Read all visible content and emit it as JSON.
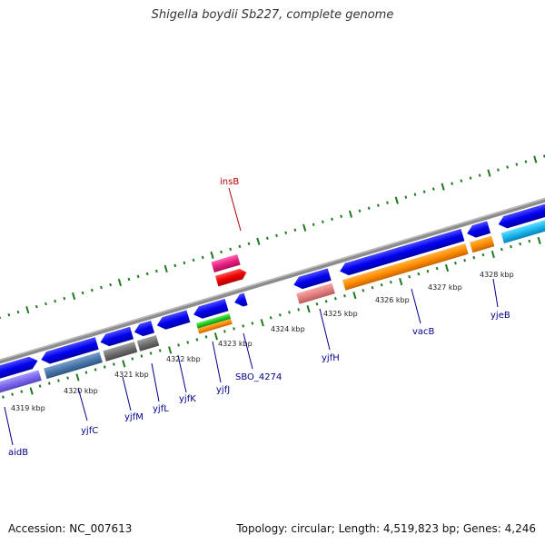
{
  "title": "Shigella boydii Sb227, complete genome",
  "footer": {
    "accession": "Accession: NC_007613",
    "summary": "Topology: circular; Length: 4,519,823 bp; Genes: 4,246"
  },
  "colors": {
    "backbone": "#8a8a8a",
    "ticks": "#1f7a1f",
    "gene_label": "#00008b",
    "mobile_label": "#b00000"
  },
  "scale_labels": [
    "4319 kbp",
    "4320 kbp",
    "4321 kbp",
    "4322 kbp",
    "4323 kbp",
    "4324 kbp",
    "4325 kbp",
    "4326 kbp",
    "4327 kbp",
    "4328 kbp"
  ],
  "gene_labels": [
    "aidB",
    "yjfC",
    "yjfM",
    "yjfL",
    "yjfK",
    "yjfJ",
    "SBO_4274",
    "yjfH",
    "vacB",
    "yjeB",
    "insB"
  ]
}
